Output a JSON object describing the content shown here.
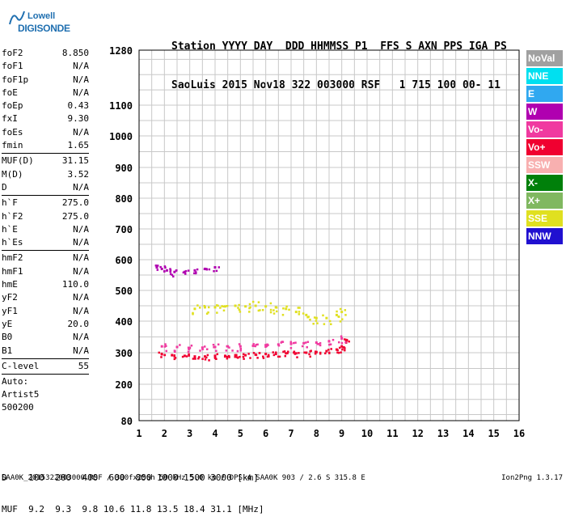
{
  "logo": {
    "line1": "Lowell",
    "line2": "DIGISONDE"
  },
  "header": {
    "row1": "Station YYYY DAY  DDD HHMMSS P1  FFS S AXN PPS IGA PS",
    "row2": "SaoLuis 2015 Nov18 322 003000 RSF   1 715 100 00- 11"
  },
  "params": {
    "group1": [
      {
        "name": "foF2",
        "value": "8.850"
      },
      {
        "name": "foF1",
        "value": "N/A"
      },
      {
        "name": "foF1p",
        "value": "N/A"
      },
      {
        "name": "foE",
        "value": "N/A"
      },
      {
        "name": "foEp",
        "value": "0.43"
      },
      {
        "name": "fxI",
        "value": "9.30"
      },
      {
        "name": "foEs",
        "value": "N/A"
      },
      {
        "name": "fmin",
        "value": "1.65"
      }
    ],
    "group2": [
      {
        "name": "MUF(D)",
        "value": "31.15"
      },
      {
        "name": "M(D)",
        "value": "3.52"
      },
      {
        "name": "D",
        "value": "N/A"
      }
    ],
    "group3": [
      {
        "name": "h`F",
        "value": "275.0"
      },
      {
        "name": "h`F2",
        "value": "275.0"
      },
      {
        "name": "h`E",
        "value": "N/A"
      },
      {
        "name": "h`Es",
        "value": "N/A"
      }
    ],
    "group4": [
      {
        "name": "hmF2",
        "value": "N/A"
      },
      {
        "name": "hmF1",
        "value": "N/A"
      },
      {
        "name": "hmE",
        "value": "110.0"
      },
      {
        "name": "yF2",
        "value": "N/A"
      },
      {
        "name": "yF1",
        "value": "N/A"
      },
      {
        "name": "yE",
        "value": "20.0"
      },
      {
        "name": "B0",
        "value": "N/A"
      },
      {
        "name": "B1",
        "value": "N/A"
      }
    ],
    "group5": [
      {
        "name": "C-level",
        "value": "55"
      }
    ],
    "auto": [
      "Auto:",
      "Artist5",
      "500200"
    ]
  },
  "legend": [
    {
      "label": "NoVal",
      "color": "#a0a0a0"
    },
    {
      "label": "NNE",
      "color": "#00e0f0"
    },
    {
      "label": "E",
      "color": "#30a8f0"
    },
    {
      "label": "W",
      "color": "#b000b0"
    },
    {
      "label": "Vo-",
      "color": "#f03aa0"
    },
    {
      "label": "Vo+",
      "color": "#f00030"
    },
    {
      "label": "SSW",
      "color": "#f8b0b0"
    },
    {
      "label": "X-",
      "color": "#00800a"
    },
    {
      "label": "X+",
      "color": "#80b860"
    },
    {
      "label": "SSE",
      "color": "#e0e020"
    },
    {
      "label": "NNW",
      "color": "#2010d0"
    }
  ],
  "footer": {
    "row1": "D    100  200  400  600  800 1000 1500 3000 [km]",
    "row2": "MUF  9.2  9.3  9.8 10.6 11.8 13.5 18.4 31.1 [MHz]",
    "bottom": "SAA0K_2015322003000.RSF / 300fx256h 50 kHz 5.0 km / DPS-4 SAA0K 903 / 2.6 S 315.8 E",
    "version": "Ion2Png 1.3.17"
  },
  "chart_data": {
    "type": "scatter",
    "title": "",
    "xlabel": "",
    "ylabel": "",
    "xlim": [
      1,
      16
    ],
    "ylim": [
      80,
      1280
    ],
    "y_scale": "nonlinear (ionogram virtual height)",
    "x_ticks": [
      1,
      2,
      3,
      4,
      5,
      6,
      7,
      8,
      9,
      10,
      11,
      12,
      13,
      14,
      15,
      16
    ],
    "y_ticks": [
      80,
      200,
      300,
      400,
      500,
      600,
      700,
      800,
      900,
      1000,
      1100,
      1280
    ],
    "grid": true,
    "series": [
      {
        "name": "Vo+",
        "color": "#f00030",
        "x": [
          1.9,
          2.3,
          2.8,
          3.2,
          3.6,
          4.0,
          4.4,
          4.8,
          5.2,
          5.6,
          6.0,
          6.4,
          6.8,
          7.2,
          7.6,
          8.0,
          8.4,
          8.8,
          9.0,
          9.2
        ],
        "y": [
          295,
          292,
          290,
          288,
          288,
          290,
          290,
          292,
          292,
          294,
          296,
          296,
          298,
          298,
          300,
          302,
          305,
          310,
          320,
          340
        ]
      },
      {
        "name": "Vo-",
        "color": "#f03aa0",
        "x": [
          1.9,
          2.5,
          3.0,
          3.5,
          4.0,
          4.5,
          5.0,
          5.5,
          6.0,
          6.5,
          7.0,
          7.5,
          8.0,
          8.5,
          9.0
        ],
        "y": [
          320,
          318,
          315,
          316,
          318,
          320,
          320,
          322,
          324,
          326,
          328,
          330,
          332,
          336,
          345
        ]
      },
      {
        "name": "SSE",
        "color": "#e0e020",
        "x": [
          3.2,
          3.6,
          4.0,
          4.4,
          4.8,
          5.2,
          5.6,
          6.0,
          6.4,
          6.8,
          7.2,
          7.6,
          8.0,
          8.4,
          8.8,
          9.0
        ],
        "y": [
          440,
          445,
          445,
          448,
          450,
          448,
          450,
          448,
          445,
          440,
          430,
          420,
          410,
          410,
          420,
          430
        ]
      },
      {
        "name": "W",
        "color": "#b000b0",
        "x": [
          1.7,
          1.9,
          2.1,
          2.4,
          2.8,
          3.2,
          3.6,
          4.0
        ],
        "y": [
          575,
          570,
          565,
          560,
          560,
          565,
          570,
          575
        ]
      }
    ]
  }
}
